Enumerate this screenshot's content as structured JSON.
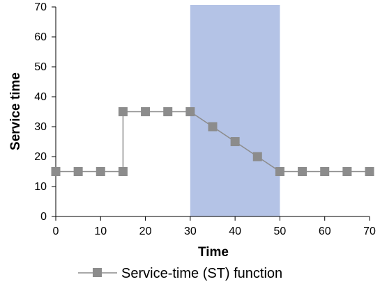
{
  "chart_data": {
    "type": "line",
    "xlabel": "Time",
    "ylabel": "Service time",
    "xlim": [
      0,
      70
    ],
    "ylim": [
      0,
      70
    ],
    "xticks": [
      0,
      10,
      20,
      30,
      40,
      50,
      60,
      70
    ],
    "yticks": [
      0,
      10,
      20,
      30,
      40,
      50,
      60,
      70
    ],
    "highlight_range": [
      30,
      50
    ],
    "legend_position": "bottom",
    "grid": false,
    "series": [
      {
        "name": "Service-time (ST) function",
        "marker": "square",
        "line_color": "#8c8c8c",
        "marker_color": "#8c8c8c",
        "points": [
          [
            0,
            15
          ],
          [
            5,
            15
          ],
          [
            10,
            15
          ],
          [
            15,
            15
          ],
          [
            15,
            35
          ],
          [
            20,
            35
          ],
          [
            25,
            35
          ],
          [
            30,
            35
          ],
          [
            35,
            30
          ],
          [
            40,
            25
          ],
          [
            45,
            20
          ],
          [
            50,
            15
          ],
          [
            55,
            15
          ],
          [
            60,
            15
          ],
          [
            65,
            15
          ],
          [
            70,
            15
          ]
        ]
      }
    ]
  },
  "colors": {
    "highlight": "#b4c3e6",
    "axis": "#000000"
  }
}
